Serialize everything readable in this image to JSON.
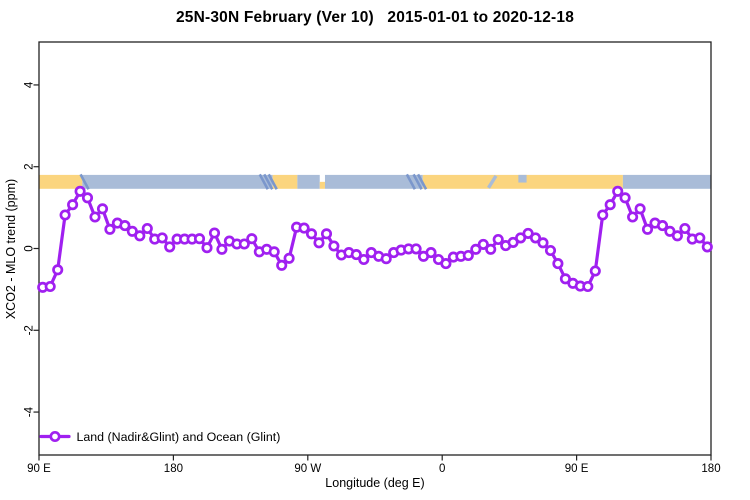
{
  "chart_data": {
    "type": "line",
    "title": "25N-30N February (Ver 10)   2015-01-01 to 2020-12-18",
    "xlabel": "Longitude (deg E)",
    "ylabel": "XCO2 - MLO trend (ppm)",
    "xlim": [
      90,
      540
    ],
    "ylim": [
      -5.05,
      5.05
    ],
    "grid": false,
    "legend_position": "bottom-left",
    "x_ticks": [
      {
        "value": 90,
        "label": "90 E"
      },
      {
        "value": 180,
        "label": "180"
      },
      {
        "value": 270,
        "label": "90 W"
      },
      {
        "value": 360,
        "label": "0"
      },
      {
        "value": 450,
        "label": "90 E"
      },
      {
        "value": 540,
        "label": "180"
      }
    ],
    "y_ticks": [
      {
        "value": -4,
        "label": "-4"
      },
      {
        "value": -2,
        "label": "-2"
      },
      {
        "value": 0,
        "label": "0"
      },
      {
        "value": 2,
        "label": "2"
      },
      {
        "value": 4,
        "label": "4"
      }
    ],
    "series": [
      {
        "name": "Land (Nadir&Glint) and Ocean (Glint)",
        "color": "#A020F0",
        "marker": "open-circle",
        "points": [
          [
            92.5,
            -0.95
          ],
          [
            97.5,
            -0.93
          ],
          [
            102.5,
            -0.52
          ],
          [
            107.5,
            0.82
          ],
          [
            112.5,
            1.07
          ],
          [
            117.5,
            1.4
          ],
          [
            122.5,
            1.24
          ],
          [
            127.5,
            0.77
          ],
          [
            132.5,
            0.97
          ],
          [
            137.5,
            0.47
          ],
          [
            142.5,
            0.62
          ],
          [
            147.5,
            0.56
          ],
          [
            152.5,
            0.42
          ],
          [
            157.5,
            0.31
          ],
          [
            162.5,
            0.49
          ],
          [
            167.5,
            0.23
          ],
          [
            172.5,
            0.26
          ],
          [
            177.5,
            0.04
          ],
          [
            182.5,
            0.23
          ],
          [
            187.5,
            0.23
          ],
          [
            192.5,
            0.23
          ],
          [
            197.5,
            0.24
          ],
          [
            202.5,
            0.02
          ],
          [
            207.5,
            0.38
          ],
          [
            212.5,
            -0.02
          ],
          [
            217.5,
            0.18
          ],
          [
            222.5,
            0.11
          ],
          [
            227.5,
            0.11
          ],
          [
            232.5,
            0.24
          ],
          [
            237.5,
            -0.08
          ],
          [
            242.5,
            -0.02
          ],
          [
            247.5,
            -0.08
          ],
          [
            252.5,
            -0.41
          ],
          [
            257.5,
            -0.24
          ],
          [
            262.5,
            0.52
          ],
          [
            267.5,
            0.5
          ],
          [
            272.5,
            0.36
          ],
          [
            277.5,
            0.14
          ],
          [
            282.5,
            0.36
          ],
          [
            287.5,
            0.06
          ],
          [
            292.5,
            -0.16
          ],
          [
            297.5,
            -0.1
          ],
          [
            302.5,
            -0.15
          ],
          [
            307.5,
            -0.27
          ],
          [
            312.5,
            -0.1
          ],
          [
            317.5,
            -0.19
          ],
          [
            322.5,
            -0.25
          ],
          [
            327.5,
            -0.1
          ],
          [
            332.5,
            -0.04
          ],
          [
            337.5,
            -0.01
          ],
          [
            342.5,
            -0.01
          ],
          [
            347.5,
            -0.19
          ],
          [
            352.5,
            -0.1
          ],
          [
            357.5,
            -0.27
          ],
          [
            362.5,
            -0.37
          ],
          [
            367.5,
            -0.21
          ],
          [
            372.5,
            -0.19
          ],
          [
            377.5,
            -0.17
          ],
          [
            382.5,
            -0.02
          ],
          [
            387.5,
            0.1
          ],
          [
            392.5,
            -0.02
          ],
          [
            397.5,
            0.22
          ],
          [
            402.5,
            0.07
          ],
          [
            407.5,
            0.15
          ],
          [
            412.5,
            0.26
          ],
          [
            417.5,
            0.37
          ],
          [
            422.5,
            0.26
          ],
          [
            427.5,
            0.14
          ],
          [
            432.5,
            -0.05
          ],
          [
            437.5,
            -0.37
          ],
          [
            442.5,
            -0.74
          ],
          [
            447.5,
            -0.85
          ],
          [
            452.5,
            -0.92
          ],
          [
            457.5,
            -0.93
          ],
          [
            462.5,
            -0.55
          ],
          [
            467.5,
            0.82
          ],
          [
            472.5,
            1.07
          ],
          [
            477.5,
            1.4
          ],
          [
            482.5,
            1.24
          ],
          [
            487.5,
            0.77
          ],
          [
            492.5,
            0.97
          ],
          [
            497.5,
            0.47
          ],
          [
            502.5,
            0.62
          ],
          [
            507.5,
            0.56
          ],
          [
            512.5,
            0.42
          ],
          [
            517.5,
            0.31
          ],
          [
            522.5,
            0.49
          ],
          [
            527.5,
            0.23
          ],
          [
            532.5,
            0.26
          ],
          [
            537.5,
            0.04
          ]
        ]
      }
    ],
    "land_ocean_strip": {
      "value_range": [
        1.46,
        1.8
      ],
      "colors": {
        "land": "#FBD57F",
        "ocean": "#A9BCD8",
        "coast": "#7B97CC"
      },
      "segments": [
        {
          "from": 90,
          "to": 119,
          "type": "land"
        },
        {
          "from": 119,
          "to": 246.5,
          "type": "ocean"
        },
        {
          "from": 246.5,
          "to": 263,
          "type": "land"
        },
        {
          "from": 263,
          "to": 278,
          "type": "ocean"
        },
        {
          "from": 278,
          "to": 281.5,
          "type": "land",
          "vpos": "bottom"
        },
        {
          "from": 281.5,
          "to": 347,
          "type": "ocean"
        },
        {
          "from": 347,
          "to": 481,
          "type": "land"
        },
        {
          "from": 481,
          "to": 540,
          "type": "ocean"
        }
      ],
      "notches": [
        {
          "from": 391,
          "to": 396,
          "type": "ocean",
          "shape": "slant"
        },
        {
          "from": 411,
          "to": 416.5,
          "type": "ocean",
          "shape": "top-half"
        }
      ],
      "coast_slashes": [
        120.5,
        240.5,
        243.5,
        246.5,
        339,
        343.5,
        346.5
      ]
    }
  }
}
